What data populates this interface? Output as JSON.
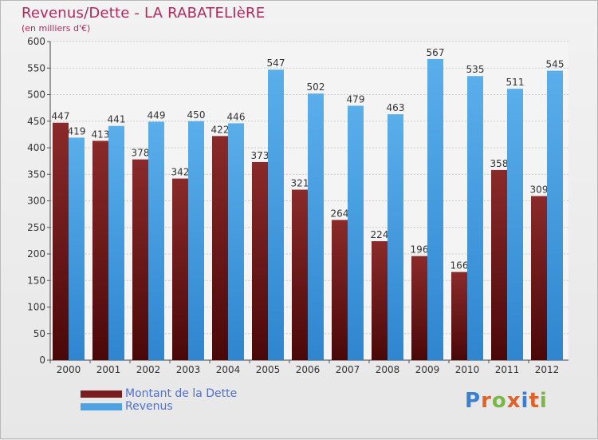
{
  "header": {
    "title": "Revenus/Dette - LA RABATELIèRE",
    "subtitle": "(en milliers d'€)"
  },
  "colors": {
    "dette": "#7a1f1f",
    "revenus": "#4ea1e3",
    "title": "#b4285a",
    "legend_text": "#4f6fd6"
  },
  "legend": {
    "dette_label": "Montant de la Dette",
    "revenus_label": "Revenus"
  },
  "logo": {
    "text": "Proxiti",
    "letter_colors": [
      "#3a7fd0",
      "#e0622b",
      "#7ab648",
      "#e0622b",
      "#3a7fd0",
      "#e0622b",
      "#7ab648"
    ]
  },
  "chart_data": {
    "type": "bar",
    "categories": [
      "2000",
      "2001",
      "2002",
      "2003",
      "2004",
      "2005",
      "2006",
      "2007",
      "2008",
      "2009",
      "2010",
      "2011",
      "2012"
    ],
    "series": [
      {
        "name": "Montant de la Dette",
        "values": [
          447,
          413,
          378,
          342,
          422,
          373,
          321,
          264,
          224,
          196,
          166,
          358,
          309
        ]
      },
      {
        "name": "Revenus",
        "values": [
          419,
          441,
          449,
          450,
          446,
          547,
          502,
          479,
          463,
          567,
          535,
          511,
          545
        ]
      }
    ],
    "ylim": [
      0,
      600
    ],
    "yticks": [
      0,
      50,
      100,
      150,
      200,
      250,
      300,
      350,
      400,
      450,
      500,
      550,
      600
    ],
    "grid": true,
    "legend_position": "bottom-left"
  }
}
